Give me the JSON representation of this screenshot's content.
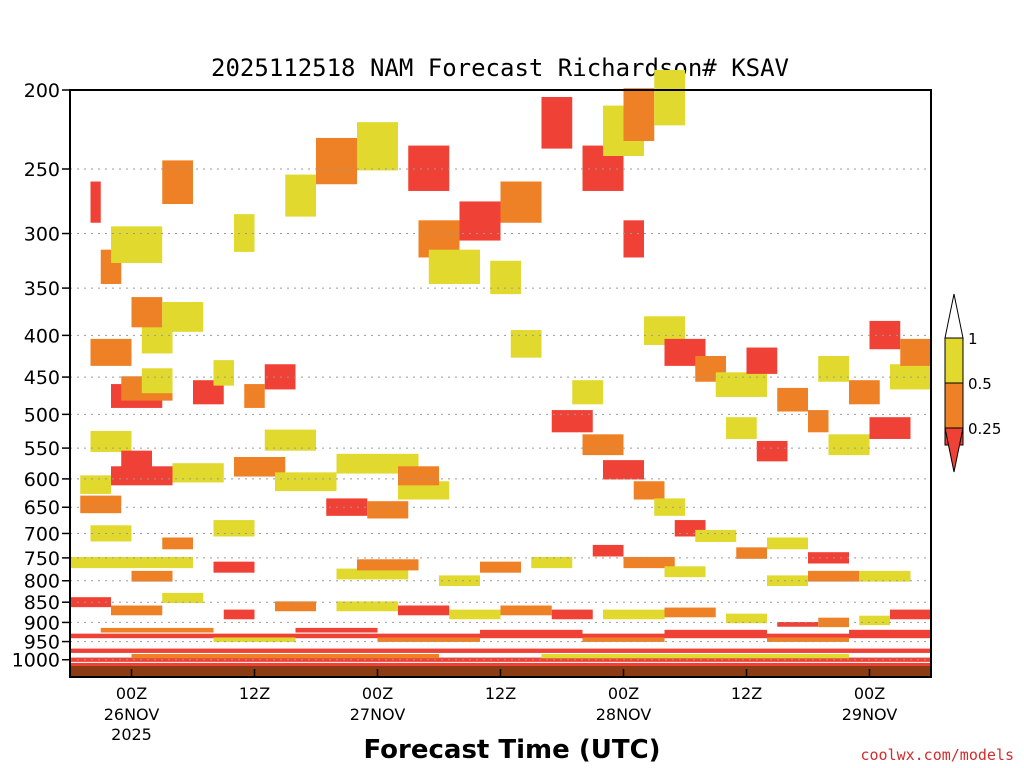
{
  "chart_data": {
    "type": "heatmap",
    "title": "2025112518 NAM Forecast Richardson# KSAV",
    "xlabel": "Forecast Time (UTC)",
    "ylabel": "",
    "x_unit": "forecast hour",
    "x_range": [
      -6,
      78
    ],
    "y_scale": "log-pressure",
    "y_range_hpa": [
      1050,
      200
    ],
    "y_ticks": [
      200,
      250,
      300,
      350,
      400,
      450,
      500,
      550,
      600,
      650,
      700,
      750,
      800,
      850,
      900,
      950,
      1000
    ],
    "x_ticks": [
      {
        "hour": 0,
        "time": "00Z",
        "date": "26NOV",
        "year": "2025"
      },
      {
        "hour": 12,
        "time": "12Z",
        "date": "",
        "year": ""
      },
      {
        "hour": 24,
        "time": "00Z",
        "date": "27NOV",
        "year": ""
      },
      {
        "hour": 36,
        "time": "12Z",
        "date": "",
        "year": ""
      },
      {
        "hour": 48,
        "time": "00Z",
        "date": "28NOV",
        "year": ""
      },
      {
        "hour": 60,
        "time": "12Z",
        "date": "",
        "year": ""
      },
      {
        "hour": 72,
        "time": "00Z",
        "date": "29NOV",
        "year": ""
      }
    ],
    "legend": {
      "position": "right",
      "levels": [
        {
          "label": "0.25",
          "color": "#ef4135",
          "class": 1
        },
        {
          "label": "0.5",
          "color": "#ee8026",
          "class": 2
        },
        {
          "label": "1",
          "color": "#e1d92e",
          "class": 3
        }
      ]
    },
    "ground_color": "#8b3c14",
    "cells": [
      [
        -4,
        0,
        -4,
        540,
        3
      ],
      [
        -2,
        3,
        -3,
        475,
        1
      ],
      [
        -1,
        4,
        -4,
        465,
        2
      ],
      [
        1,
        4,
        -4,
        455,
        3
      ],
      [
        6,
        9,
        -4,
        470,
        1
      ],
      [
        8,
        10,
        -4,
        445,
        3
      ],
      [
        11,
        13,
        -4,
        475,
        2
      ],
      [
        13,
        16,
        -4,
        450,
        1
      ],
      [
        -4,
        0,
        -4,
        420,
        2
      ],
      [
        1,
        4,
        -4,
        405,
        3
      ],
      [
        0,
        3,
        -4,
        375,
        2
      ],
      [
        3,
        7,
        -4,
        380,
        3
      ],
      [
        -3,
        -1,
        -4,
        330,
        2
      ],
      [
        -2,
        3,
        -4,
        310,
        3
      ],
      [
        -4,
        -3,
        -4,
        275,
        1
      ],
      [
        3,
        6,
        -4,
        260,
        2
      ],
      [
        10,
        12,
        -4,
        300,
        3
      ],
      [
        -5,
        -1,
        -3,
        645,
        2
      ],
      [
        -5,
        -2,
        -4,
        610,
        3
      ],
      [
        -2,
        4,
        -4,
        595,
        1
      ],
      [
        4,
        9,
        -4,
        590,
        3
      ],
      [
        10,
        15,
        -4,
        580,
        2
      ],
      [
        14,
        20,
        -4,
        605,
        3
      ],
      [
        -4,
        0,
        -4,
        700,
        3
      ],
      [
        3,
        6,
        -4,
        720,
        2
      ],
      [
        8,
        12,
        -4,
        690,
        3
      ],
      [
        19,
        23,
        -4,
        650,
        1
      ],
      [
        23,
        27,
        -4,
        655,
        2
      ],
      [
        26,
        31,
        -4,
        620,
        3
      ],
      [
        20,
        28,
        -4,
        575,
        3
      ],
      [
        26,
        30,
        -4,
        595,
        2
      ],
      [
        13,
        18,
        -4,
        538,
        3
      ],
      [
        -1,
        2,
        -4,
        570,
        1
      ],
      [
        -6,
        6,
        -3,
        760,
        3
      ],
      [
        0,
        4,
        -3,
        790,
        2
      ],
      [
        8,
        12,
        -3,
        770,
        1
      ],
      [
        20,
        27,
        -3,
        785,
        3
      ],
      [
        22,
        28,
        -3,
        765,
        2
      ],
      [
        30,
        34,
        -3,
        800,
        3
      ],
      [
        34,
        38,
        -3,
        770,
        2
      ],
      [
        39,
        43,
        -3,
        760,
        3
      ],
      [
        45,
        48,
        -3,
        735,
        1
      ],
      [
        48,
        53,
        -3,
        760,
        2
      ],
      [
        52,
        56,
        -3,
        780,
        3
      ],
      [
        62,
        66,
        -3,
        800,
        3
      ],
      [
        66,
        71,
        -3,
        790,
        2
      ],
      [
        71,
        76,
        -3,
        790,
        3
      ],
      [
        -6,
        -2,
        -4,
        850,
        1
      ],
      [
        -2,
        3,
        -4,
        870,
        2
      ],
      [
        3,
        7,
        -4,
        840,
        3
      ],
      [
        9,
        12,
        -4,
        880,
        1
      ],
      [
        14,
        18,
        -4,
        860,
        2
      ],
      [
        20,
        26,
        -4,
        860,
        3
      ],
      [
        26,
        31,
        -4,
        870,
        1
      ],
      [
        31,
        36,
        -4,
        880,
        3
      ],
      [
        36,
        41,
        -4,
        870,
        2
      ],
      [
        41,
        45,
        -4,
        880,
        1
      ],
      [
        46,
        52,
        -4,
        880,
        3
      ],
      [
        52,
        57,
        -4,
        875,
        2
      ],
      [
        58,
        62,
        -4,
        890,
        3
      ],
      [
        63,
        67,
        -4,
        905,
        1
      ],
      [
        67,
        70,
        -4,
        900,
        2
      ],
      [
        71,
        74,
        -4,
        895,
        3
      ],
      [
        74,
        78,
        -4,
        880,
        1
      ],
      [
        -6,
        78,
        -3,
        935,
        1
      ],
      [
        -3,
        8,
        -3,
        920,
        2
      ],
      [
        8,
        16,
        -3,
        945,
        3
      ],
      [
        16,
        24,
        -3,
        920,
        1
      ],
      [
        24,
        34,
        -3,
        945,
        2
      ],
      [
        34,
        44,
        -3,
        925,
        1
      ],
      [
        44,
        52,
        -3,
        945,
        2
      ],
      [
        52,
        62,
        -3,
        925,
        1
      ],
      [
        62,
        70,
        -3,
        945,
        2
      ],
      [
        70,
        78,
        -3,
        925,
        1
      ],
      [
        -6,
        78,
        -2,
        975,
        1
      ],
      [
        -6,
        78,
        -1,
        1000,
        1
      ],
      [
        -6,
        78,
        -1,
        1015,
        1
      ],
      [
        0,
        30,
        -1,
        990,
        2
      ],
      [
        40,
        70,
        -1,
        990,
        3
      ],
      [
        15,
        18,
        -4,
        270,
        3
      ],
      [
        18,
        22,
        -4,
        245,
        2
      ],
      [
        22,
        26,
        -4,
        235,
        3
      ],
      [
        27,
        31,
        -4,
        250,
        1
      ],
      [
        28,
        32,
        -4,
        305,
        2
      ],
      [
        29,
        34,
        -4,
        330,
        3
      ],
      [
        32,
        36,
        -4,
        290,
        1
      ],
      [
        36,
        40,
        -4,
        275,
        2
      ],
      [
        35,
        38,
        -4,
        340,
        3
      ],
      [
        40,
        43,
        -4,
        220,
        1
      ],
      [
        44,
        48,
        -4,
        250,
        1
      ],
      [
        46,
        50,
        -4,
        225,
        3
      ],
      [
        48,
        51,
        -4,
        215,
        2
      ],
      [
        51,
        54,
        -4,
        205,
        3
      ],
      [
        48,
        50,
        -4,
        305,
        1
      ],
      [
        50,
        54,
        -4,
        395,
        3
      ],
      [
        52,
        56,
        -4,
        420,
        1
      ],
      [
        55,
        58,
        -4,
        440,
        2
      ],
      [
        57,
        62,
        -4,
        460,
        3
      ],
      [
        60,
        63,
        -4,
        430,
        1
      ],
      [
        63,
        66,
        -4,
        480,
        2
      ],
      [
        67,
        70,
        -4,
        440,
        3
      ],
      [
        70,
        73,
        -4,
        470,
        2
      ],
      [
        72,
        75,
        -4,
        400,
        1
      ],
      [
        74,
        78,
        -4,
        450,
        3
      ],
      [
        75,
        78,
        -4,
        420,
        2
      ],
      [
        58,
        61,
        -4,
        520,
        3
      ],
      [
        61,
        64,
        -4,
        555,
        1
      ],
      [
        66,
        68,
        -4,
        510,
        2
      ],
      [
        68,
        72,
        -4,
        545,
        3
      ],
      [
        72,
        76,
        -4,
        520,
        1
      ],
      [
        41,
        45,
        -4,
        510,
        1
      ],
      [
        44,
        48,
        -4,
        545,
        2
      ],
      [
        46,
        50,
        -4,
        585,
        1
      ],
      [
        49,
        52,
        -4,
        620,
        2
      ],
      [
        51,
        54,
        -4,
        650,
        3
      ],
      [
        53,
        56,
        -4,
        690,
        1
      ],
      [
        55,
        59,
        -4,
        705,
        3
      ],
      [
        59,
        62,
        -4,
        740,
        2
      ],
      [
        62,
        66,
        -4,
        720,
        3
      ],
      [
        66,
        70,
        -4,
        750,
        1
      ],
      [
        43,
        46,
        -4,
        470,
        3
      ],
      [
        37,
        40,
        -4,
        410,
        3
      ]
    ]
  },
  "footer": {
    "credit": "coolwx.com/models"
  }
}
